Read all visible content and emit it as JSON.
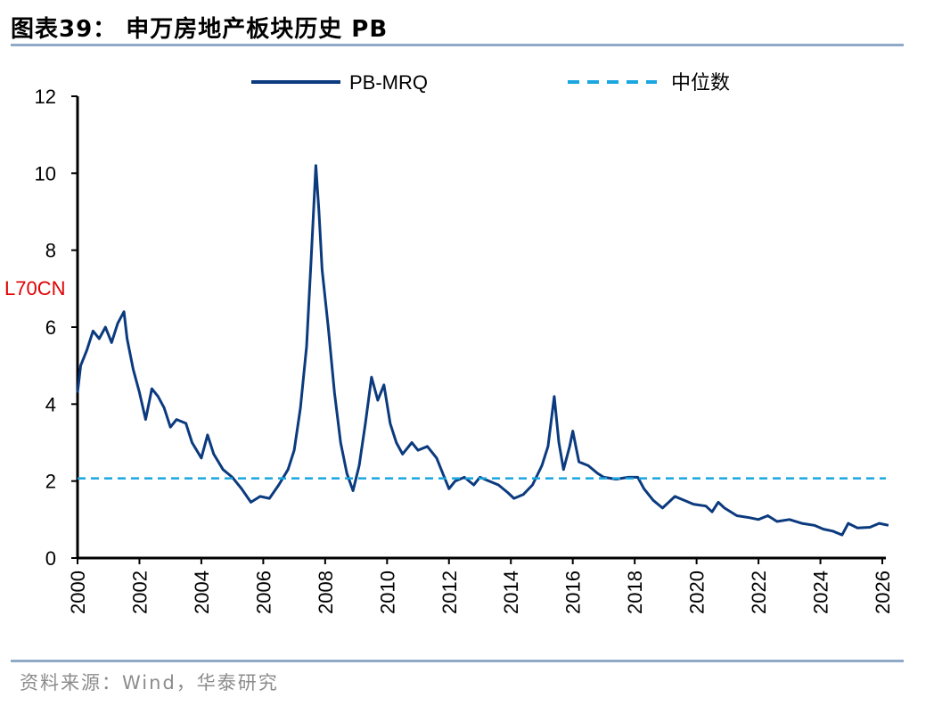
{
  "title": "图表39：  申万房地产板块历史 PB",
  "source": "资料来源：Wind，华泰研究",
  "overlay_text": "L70CN",
  "colors": {
    "series": "#0b3a7e",
    "median": "#1aa6e0",
    "separator": "#8fa9c6"
  },
  "chart_data": {
    "type": "line",
    "title": "申万房地产板块历史 PB",
    "xlabel": "",
    "ylabel": "",
    "xlim": [
      2000,
      2026
    ],
    "ylim": [
      0,
      12
    ],
    "yticks": [
      0,
      2,
      4,
      6,
      8,
      10,
      12
    ],
    "xticks": [
      "2000",
      "2002",
      "2004",
      "2006",
      "2008",
      "2010",
      "2012",
      "2014",
      "2016",
      "2018",
      "2020",
      "2022",
      "2024",
      "2026"
    ],
    "legend": {
      "placement": "top-center",
      "entries": [
        "PB-MRQ",
        "中位数"
      ]
    },
    "grid": false,
    "series": [
      {
        "name": "PB-MRQ",
        "style": "solid",
        "x": [
          2000.0,
          2000.1,
          2000.3,
          2000.5,
          2000.7,
          2000.9,
          2001.1,
          2001.3,
          2001.5,
          2001.6,
          2001.8,
          2002.0,
          2002.2,
          2002.4,
          2002.6,
          2002.8,
          2003.0,
          2003.2,
          2003.5,
          2003.7,
          2004.0,
          2004.2,
          2004.4,
          2004.7,
          2005.0,
          2005.3,
          2005.6,
          2005.9,
          2006.2,
          2006.5,
          2006.8,
          2007.0,
          2007.2,
          2007.4,
          2007.55,
          2007.7,
          2007.8,
          2007.9,
          2008.1,
          2008.3,
          2008.5,
          2008.7,
          2008.9,
          2009.1,
          2009.3,
          2009.5,
          2009.7,
          2009.9,
          2010.1,
          2010.3,
          2010.5,
          2010.8,
          2011.0,
          2011.3,
          2011.6,
          2011.8,
          2012.0,
          2012.2,
          2012.5,
          2012.8,
          2013.0,
          2013.3,
          2013.6,
          2013.9,
          2014.1,
          2014.4,
          2014.7,
          2015.0,
          2015.2,
          2015.4,
          2015.55,
          2015.7,
          2015.9,
          2016.0,
          2016.2,
          2016.5,
          2016.8,
          2017.0,
          2017.4,
          2017.8,
          2018.1,
          2018.3,
          2018.6,
          2018.9,
          2019.1,
          2019.3,
          2019.6,
          2019.9,
          2020.3,
          2020.5,
          2020.7,
          2020.9,
          2021.3,
          2021.7,
          2022.0,
          2022.3,
          2022.6,
          2023.0,
          2023.4,
          2023.8,
          2024.1,
          2024.4,
          2024.7,
          2024.9,
          2025.2,
          2025.6,
          2025.9,
          2026.2
        ],
        "values": [
          4.3,
          5.0,
          5.4,
          5.9,
          5.7,
          6.0,
          5.6,
          6.1,
          6.4,
          5.7,
          4.9,
          4.3,
          3.6,
          4.4,
          4.2,
          3.9,
          3.4,
          3.6,
          3.5,
          3.0,
          2.6,
          3.2,
          2.7,
          2.3,
          2.1,
          1.8,
          1.45,
          1.6,
          1.55,
          1.9,
          2.3,
          2.8,
          3.9,
          5.5,
          7.8,
          10.2,
          9.0,
          7.5,
          6.0,
          4.3,
          3.0,
          2.2,
          1.75,
          2.4,
          3.5,
          4.7,
          4.1,
          4.5,
          3.5,
          3.0,
          2.7,
          3.0,
          2.8,
          2.9,
          2.6,
          2.2,
          1.8,
          2.0,
          2.1,
          1.9,
          2.1,
          2.0,
          1.9,
          1.7,
          1.55,
          1.65,
          1.9,
          2.4,
          2.9,
          4.2,
          3.0,
          2.3,
          2.9,
          3.3,
          2.5,
          2.4,
          2.2,
          2.1,
          2.05,
          2.1,
          2.1,
          1.8,
          1.5,
          1.3,
          1.45,
          1.6,
          1.5,
          1.4,
          1.35,
          1.2,
          1.45,
          1.3,
          1.1,
          1.05,
          1.0,
          1.1,
          0.95,
          1.0,
          0.9,
          0.85,
          0.75,
          0.7,
          0.6,
          0.9,
          0.78,
          0.8,
          0.9,
          0.85
        ]
      },
      {
        "name": "中位数",
        "style": "dashed",
        "value": 2.07
      }
    ]
  }
}
